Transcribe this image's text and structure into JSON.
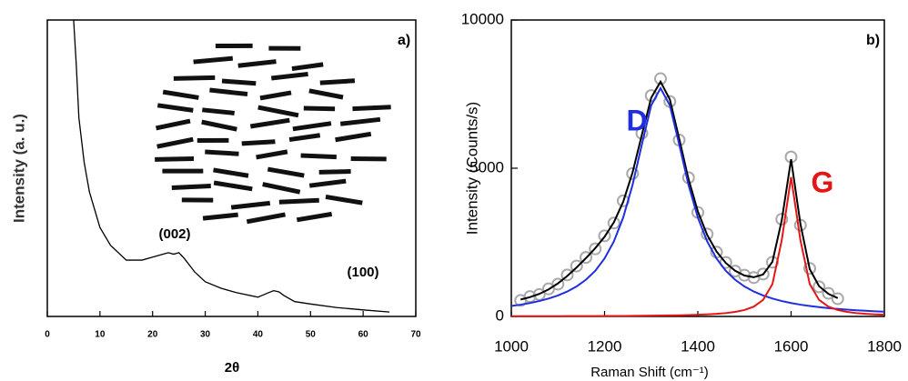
{
  "chart_data": [
    {
      "type": "line",
      "ylabel": "Intensity (a. u.)",
      "xlabel": "2θ",
      "panel_label": "a)",
      "annotations": [
        "(002)",
        "(100)"
      ],
      "x": [
        5,
        5.5,
        6,
        7,
        8,
        10,
        12,
        15,
        18,
        20,
        22,
        23,
        24,
        25,
        26,
        28,
        30,
        33,
        36,
        40,
        42,
        43,
        44,
        45,
        47,
        50,
        55,
        60,
        65
      ],
      "values": [
        100,
        85,
        67,
        52,
        42,
        30,
        24,
        19,
        19,
        20,
        21,
        21.5,
        21,
        21.5,
        19.6,
        15,
        11.7,
        9.5,
        8,
        6.5,
        8,
        8.7,
        8.3,
        7,
        5,
        4.2,
        3,
        2.2,
        1.5
      ],
      "color": "#000000",
      "xlim": [
        0,
        70
      ],
      "xticks": [
        0,
        10,
        20,
        30,
        40,
        50,
        60,
        70
      ],
      "ylim": [
        0,
        100
      ]
    },
    {
      "type": "line",
      "ylabel": "Intensity (Counts/s)",
      "xlabel": "Raman Shift (cm⁻¹)",
      "panel_label": "b)",
      "x": [
        1000,
        1020,
        1040,
        1060,
        1080,
        1100,
        1120,
        1140,
        1160,
        1180,
        1200,
        1220,
        1240,
        1260,
        1280,
        1300,
        1320,
        1340,
        1360,
        1380,
        1400,
        1420,
        1440,
        1460,
        1480,
        1500,
        1520,
        1540,
        1560,
        1580,
        1600,
        1620,
        1640,
        1660,
        1680,
        1700,
        1720,
        1740,
        1760,
        1780,
        1800
      ],
      "series": [
        {
          "color": "#a9a9a9",
          "mode": "markers",
          "values": [
            null,
            540,
            670,
            740,
            930,
            1090,
            1400,
            1700,
            1990,
            2280,
            2720,
            3150,
            3900,
            4820,
            6180,
            7450,
            8020,
            7250,
            5950,
            4680,
            3510,
            2780,
            2170,
            1820,
            1530,
            1390,
            1310,
            1430,
            1830,
            3280,
            5380,
            3080,
            1620,
            1000,
            780,
            600,
            null,
            null,
            null,
            null,
            null
          ]
        },
        {
          "color": "#000000",
          "mode": "line",
          "values": [
            null,
            571,
            650,
            760,
            912,
            1115,
            1365,
            1653,
            1967,
            2303,
            2686,
            3178,
            3870,
            4856,
            6127,
            7376,
            7919,
            7319,
            6001,
            4634,
            3545,
            2751,
            2192,
            1803,
            1541,
            1379,
            1322,
            1415,
            1846,
            3244,
            5303,
            3121,
            1594,
            1020,
            761,
            620,
            null,
            null,
            null,
            null,
            null
          ]
        },
        {
          "name": "D",
          "color": "#1f2fe0",
          "mode": "line",
          "values": [
            352,
            397,
            453,
            520,
            604,
            708,
            841,
            1012,
            1238,
            1540,
            1955,
            2532,
            3339,
            4438,
            5805,
            7119,
            7700,
            7119,
            5805,
            4438,
            3339,
            2532,
            1955,
            1540,
            1238,
            1012,
            841,
            708,
            604,
            520,
            453,
            397,
            352,
            313,
            280,
            253,
            229,
            208,
            190,
            174,
            160
          ]
        },
        {
          "name": "G",
          "color": "#e51515",
          "mode": "line",
          "values": [
            6,
            7,
            7,
            8,
            8,
            9,
            10,
            11,
            12,
            13,
            14,
            16,
            17,
            20,
            22,
            25,
            29,
            33,
            39,
            46,
            56,
            69,
            87,
            113,
            153,
            217,
            331,
            557,
            1092,
            2574,
            4700,
            2574,
            1092,
            557,
            331,
            217,
            153,
            113,
            87,
            69,
            56
          ]
        }
      ],
      "xlim": [
        1000,
        1800
      ],
      "xticks": [
        1000,
        1200,
        1400,
        1600,
        1800
      ],
      "ylim": [
        0,
        10000
      ],
      "yticks": [
        0,
        5000,
        10000
      ]
    }
  ]
}
